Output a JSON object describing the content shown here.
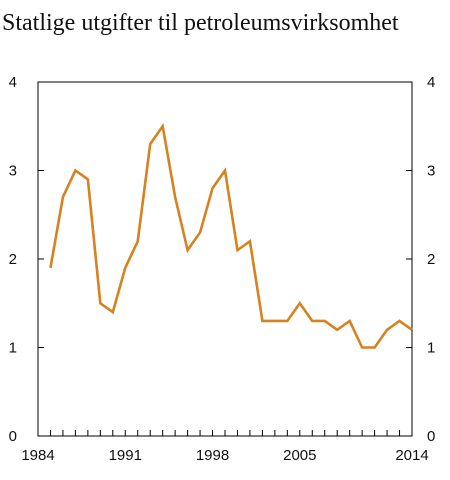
{
  "chart_data": {
    "type": "line",
    "title": "Statlige utgifter til petroleumsvirksomhet",
    "xlabel": "",
    "ylabel": "",
    "xlim": [
      1984,
      2014
    ],
    "ylim": [
      0,
      4
    ],
    "x_ticks": [
      "1984",
      "1991",
      "1998",
      "2005",
      "2014"
    ],
    "y_ticks": [
      "0",
      "1",
      "2",
      "3",
      "4"
    ],
    "grid": false,
    "series": [
      {
        "color": "#d6821f",
        "x": [
          1985,
          1986,
          1987,
          1988,
          1989,
          1990,
          1991,
          1992,
          1993,
          1994,
          1995,
          1996,
          1997,
          1998,
          1999,
          2000,
          2001,
          2002,
          2003,
          2004,
          2005,
          2006,
          2007,
          2008,
          2009,
          2010,
          2011,
          2012,
          2013,
          2014
        ],
        "values": [
          1.9,
          2.7,
          3.0,
          2.9,
          1.5,
          1.4,
          1.9,
          2.2,
          3.3,
          3.5,
          2.7,
          2.1,
          2.3,
          2.8,
          3.0,
          2.1,
          2.2,
          1.3,
          1.3,
          1.3,
          1.5,
          1.3,
          1.3,
          1.2,
          1.3,
          1.0,
          1.0,
          1.2,
          1.3,
          1.2
        ]
      }
    ]
  }
}
